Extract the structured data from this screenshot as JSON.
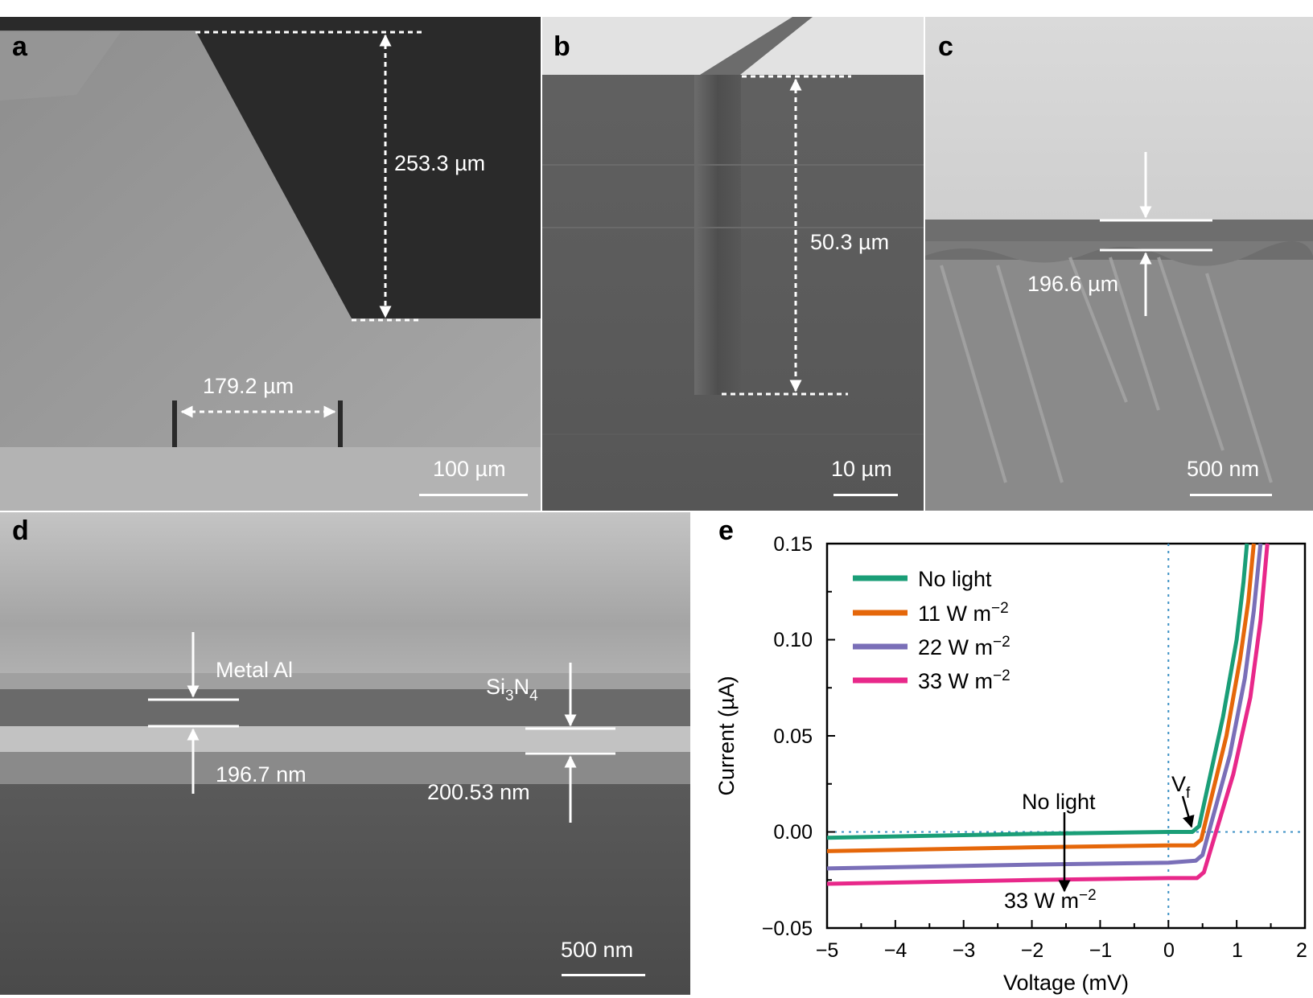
{
  "figure": {
    "panels": [
      {
        "id": "a",
        "label": "a",
        "annotations": [
          "253.3 µm",
          "179.2 µm"
        ],
        "scalebar": "100 µm"
      },
      {
        "id": "b",
        "label": "b",
        "annotations": [
          "50.3 µm"
        ],
        "scalebar": "10 µm"
      },
      {
        "id": "c",
        "label": "c",
        "annotations": [
          "196.6 µm"
        ],
        "scalebar": "500 nm"
      },
      {
        "id": "d",
        "label": "d",
        "annotations": [
          "Metal Al",
          "196.7 nm",
          "200.53 nm"
        ],
        "material_base": "Si",
        "material_sub1": "3",
        "material_mid": "N",
        "material_sub2": "4",
        "scalebar": "500 nm"
      },
      {
        "id": "e",
        "label": "e"
      }
    ]
  },
  "chart_data": {
    "type": "line",
    "xlabel": "Voltage (mV)",
    "ylabel": "Current (µA)",
    "xlim": [
      -5,
      2
    ],
    "ylim": [
      -0.05,
      0.15
    ],
    "xticks": [
      "−5",
      "−4",
      "−3",
      "−2",
      "−1",
      "0",
      "1",
      "2"
    ],
    "yticks": [
      "−0.05",
      "0.00",
      "0.05",
      "0.10",
      "0.15"
    ],
    "grid": false,
    "legend_position": "top-left",
    "reference_lines": {
      "x": 0,
      "y": 0
    },
    "series": [
      {
        "name": "No light",
        "unit": "",
        "color": "#1a9e77",
        "x": [
          -5,
          -2,
          0,
          0.35,
          0.45,
          0.8,
          1.0,
          1.1,
          1.15
        ],
        "y": [
          -0.003,
          -0.001,
          0.0,
          0.0,
          0.003,
          0.06,
          0.1,
          0.13,
          0.15
        ]
      },
      {
        "name": "11 W m",
        "unit": "−2",
        "color": "#e5670a",
        "x": [
          -5,
          -2,
          0,
          0.38,
          0.48,
          0.85,
          1.05,
          1.17,
          1.25
        ],
        "y": [
          -0.01,
          -0.008,
          -0.007,
          -0.007,
          -0.004,
          0.05,
          0.09,
          0.12,
          0.15
        ]
      },
      {
        "name": "22 W m",
        "unit": "−2",
        "color": "#7a6fb8",
        "x": [
          -5,
          -2,
          0,
          0.4,
          0.5,
          0.9,
          1.12,
          1.25,
          1.35
        ],
        "y": [
          -0.019,
          -0.017,
          -0.016,
          -0.015,
          -0.012,
          0.04,
          0.08,
          0.115,
          0.15
        ]
      },
      {
        "name": "33 W m",
        "unit": "−2",
        "color": "#e8288a",
        "x": [
          -5,
          -2,
          0,
          0.42,
          0.52,
          0.95,
          1.2,
          1.35,
          1.45
        ],
        "y": [
          -0.027,
          -0.025,
          -0.024,
          -0.024,
          -0.021,
          0.03,
          0.07,
          0.11,
          0.15
        ]
      }
    ],
    "annotations": {
      "top_text": "No light",
      "bottom_text": "33 W m",
      "bottom_unit": "−2",
      "vf_main": "V",
      "vf_sub": "f"
    }
  }
}
